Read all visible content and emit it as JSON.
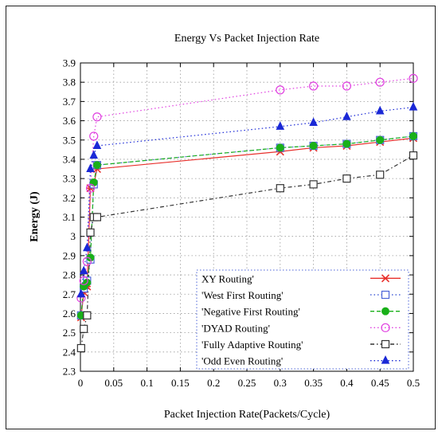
{
  "chart_data": {
    "type": "line",
    "title": "Energy Vs Packet Injection Rate",
    "xlabel": "Packet Injection Rate(Packets/Cycle)",
    "ylabel": "Energy  (J)",
    "xlim": [
      0,
      0.5
    ],
    "ylim": [
      2.3,
      3.9
    ],
    "xticks": [
      "0",
      "0.05",
      "0.1",
      "0.15",
      "0.2",
      "0.25",
      "0.3",
      "0.35",
      "0.4",
      "0.45",
      "0.5"
    ],
    "xtick_values": [
      0,
      0.05,
      0.1,
      0.15,
      0.2,
      0.25,
      0.3,
      0.35,
      0.4,
      0.45,
      0.5
    ],
    "yticks": [
      "2.3",
      "2.4",
      "2.5",
      "2.6",
      "2.7",
      "2.8",
      "2.9",
      "3",
      "3.1",
      "3.2",
      "3.3",
      "3.4",
      "3.5",
      "3.6",
      "3.7",
      "3.8",
      "3.9"
    ],
    "ytick_values": [
      2.3,
      2.4,
      2.5,
      2.6,
      2.7,
      2.8,
      2.9,
      3.0,
      3.1,
      3.2,
      3.3,
      3.4,
      3.5,
      3.6,
      3.7,
      3.8,
      3.9
    ],
    "grid": true,
    "legend_position": "bottom-right",
    "series": [
      {
        "name": "XY Routing'",
        "color": "#e8302c",
        "dash": "solid",
        "marker": "x-star",
        "x": [
          0.001,
          0.005,
          0.01,
          0.015,
          0.02,
          0.025,
          0.3,
          0.35,
          0.4,
          0.45,
          0.5
        ],
        "y": [
          2.58,
          2.71,
          2.74,
          3.25,
          3.27,
          3.35,
          3.44,
          3.46,
          3.47,
          3.49,
          3.51
        ]
      },
      {
        "name": "'West First Routing'",
        "color": "#4c64d8",
        "dash": "dot",
        "marker": "open-square",
        "x": [
          0.001,
          0.005,
          0.01,
          0.015,
          0.02,
          0.025,
          0.3,
          0.35,
          0.4,
          0.45,
          0.5
        ],
        "y": [
          2.59,
          2.73,
          2.77,
          2.88,
          3.27,
          3.37,
          3.46,
          3.47,
          3.48,
          3.5,
          3.52
        ]
      },
      {
        "name": "'Negative First Routing'",
        "color": "#19b019",
        "dash": "dash",
        "marker": "filled-circle",
        "x": [
          0.001,
          0.005,
          0.01,
          0.015,
          0.02,
          0.025,
          0.3,
          0.35,
          0.4,
          0.45,
          0.5
        ],
        "y": [
          2.59,
          2.74,
          2.76,
          2.89,
          3.28,
          3.37,
          3.46,
          3.47,
          3.48,
          3.5,
          3.52
        ]
      },
      {
        "name": "'DYAD Routing'",
        "color": "#e040e0",
        "dash": "dot",
        "marker": "open-circle",
        "x": [
          0.001,
          0.005,
          0.01,
          0.015,
          0.02,
          0.025,
          0.3,
          0.35,
          0.4,
          0.45,
          0.5
        ],
        "y": [
          2.68,
          2.77,
          2.87,
          3.25,
          3.52,
          3.62,
          3.76,
          3.78,
          3.78,
          3.8,
          3.82
        ]
      },
      {
        "name": "'Fully Adaptive Routing'",
        "color": "#333333",
        "dash": "dashdot",
        "marker": "open-square",
        "x": [
          0.001,
          0.005,
          0.01,
          0.015,
          0.02,
          0.025,
          0.3,
          0.35,
          0.4,
          0.45,
          0.5
        ],
        "y": [
          2.42,
          2.52,
          2.59,
          3.02,
          3.1,
          3.1,
          3.25,
          3.27,
          3.3,
          3.32,
          3.42
        ]
      },
      {
        "name": "'Odd Even Routing'",
        "color": "#1a28d6",
        "dash": "dot",
        "marker": "filled-triangle",
        "x": [
          0.001,
          0.005,
          0.01,
          0.015,
          0.02,
          0.025,
          0.3,
          0.35,
          0.4,
          0.45,
          0.5
        ],
        "y": [
          2.7,
          2.82,
          2.94,
          3.35,
          3.42,
          3.47,
          3.57,
          3.59,
          3.62,
          3.65,
          3.67
        ]
      }
    ]
  }
}
